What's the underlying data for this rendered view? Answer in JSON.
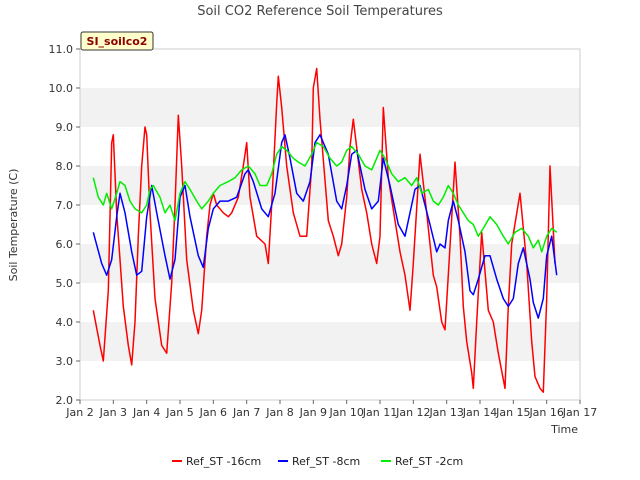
{
  "chart_data": {
    "type": "line",
    "title": "Soil CO2 Reference Soil Temperatures",
    "xlabel": "Time",
    "ylabel": "Soil Temperature (C)",
    "site_badge": "SI_soilco2",
    "ylim": [
      2.0,
      11.0
    ],
    "y_ticks": [
      "2.0",
      "3.0",
      "4.0",
      "5.0",
      "6.0",
      "7.0",
      "8.0",
      "9.0",
      "10.0",
      "11.0"
    ],
    "xlim": [
      2,
      17
    ],
    "x_ticks": [
      "Jan 2",
      "Jan 3",
      "Jan 4",
      "Jan 5",
      "Jan 6",
      "Jan 7",
      "Jan 8",
      "Jan 9",
      "Jan 10",
      "Jan 11",
      "Jan 12",
      "Jan 13",
      "Jan 14",
      "Jan 15",
      "Jan 16",
      "Jan 17"
    ],
    "grid": "horizontal alternating bands",
    "legend_position": "bottom",
    "series": [
      {
        "name": "Ref_ST -16cm",
        "color": "#ff0000",
        "x": [
          2.4,
          2.6,
          2.7,
          2.85,
          2.95,
          3.0,
          3.1,
          3.3,
          3.45,
          3.55,
          3.65,
          3.75,
          3.85,
          3.95,
          4.0,
          4.1,
          4.25,
          4.45,
          4.6,
          4.75,
          4.85,
          4.95,
          5.05,
          5.2,
          5.4,
          5.55,
          5.65,
          5.8,
          5.9,
          6.0,
          6.1,
          6.3,
          6.45,
          6.55,
          6.75,
          6.9,
          7.0,
          7.1,
          7.3,
          7.55,
          7.65,
          7.75,
          7.9,
          7.95,
          8.05,
          8.2,
          8.4,
          8.6,
          8.8,
          8.95,
          9.0,
          9.1,
          9.2,
          9.45,
          9.6,
          9.75,
          9.85,
          10.0,
          10.1,
          10.2,
          10.45,
          10.6,
          10.75,
          10.9,
          11.0,
          11.1,
          11.25,
          11.45,
          11.6,
          11.75,
          11.9,
          12.0,
          12.2,
          12.4,
          12.6,
          12.7,
          12.85,
          12.95,
          13.05,
          13.25,
          13.4,
          13.5,
          13.6,
          13.75,
          13.8,
          13.9,
          14.05,
          14.25,
          14.4,
          14.55,
          14.75,
          14.85,
          14.95,
          15.2,
          15.4,
          15.55,
          15.65,
          15.8,
          15.9,
          16.0,
          16.1,
          16.25
        ],
        "y": [
          4.3,
          3.4,
          3.0,
          4.8,
          8.6,
          8.8,
          6.8,
          4.4,
          3.4,
          2.9,
          4.0,
          6.2,
          8.0,
          9.0,
          8.8,
          6.8,
          4.6,
          3.4,
          3.2,
          5.0,
          7.0,
          9.3,
          8.0,
          5.6,
          4.3,
          3.7,
          4.3,
          6.2,
          7.0,
          7.3,
          7.0,
          6.8,
          6.7,
          6.8,
          7.2,
          8.0,
          8.6,
          7.2,
          6.2,
          6.0,
          5.5,
          7.0,
          9.6,
          10.3,
          9.5,
          8.0,
          6.8,
          6.2,
          6.2,
          8.0,
          10.0,
          10.5,
          9.2,
          6.6,
          6.2,
          5.7,
          6.0,
          7.2,
          8.5,
          9.2,
          7.4,
          6.8,
          6.0,
          5.5,
          6.2,
          9.5,
          7.7,
          6.6,
          5.8,
          5.2,
          4.3,
          5.5,
          8.3,
          6.8,
          5.2,
          4.9,
          4.0,
          3.8,
          5.2,
          8.1,
          6.2,
          4.4,
          3.5,
          2.7,
          2.3,
          4.0,
          6.3,
          4.3,
          4.0,
          3.2,
          2.3,
          4.4,
          6.0,
          7.3,
          5.5,
          3.5,
          2.6,
          2.3,
          2.2,
          4.6,
          8.0,
          5.5
        ]
      },
      {
        "name": "Ref_ST -8cm",
        "color": "#0000ff",
        "x": [
          2.4,
          2.65,
          2.8,
          2.95,
          3.1,
          3.2,
          3.35,
          3.55,
          3.7,
          3.85,
          4.0,
          4.15,
          4.3,
          4.55,
          4.7,
          4.85,
          5.0,
          5.15,
          5.3,
          5.55,
          5.7,
          5.85,
          6.0,
          6.2,
          6.45,
          6.7,
          6.95,
          7.05,
          7.2,
          7.45,
          7.65,
          7.85,
          8.05,
          8.15,
          8.3,
          8.5,
          8.7,
          8.9,
          9.05,
          9.2,
          9.45,
          9.7,
          9.85,
          10.0,
          10.15,
          10.3,
          10.55,
          10.75,
          10.95,
          11.1,
          11.3,
          11.55,
          11.75,
          11.9,
          12.05,
          12.2,
          12.35,
          12.5,
          12.7,
          12.8,
          12.95,
          13.05,
          13.2,
          13.35,
          13.55,
          13.7,
          13.8,
          13.95,
          14.15,
          14.3,
          14.5,
          14.7,
          14.85,
          15.0,
          15.15,
          15.3,
          15.5,
          15.6,
          15.75,
          15.9,
          16.0,
          16.15,
          16.3
        ],
        "y": [
          6.3,
          5.5,
          5.2,
          5.6,
          6.7,
          7.3,
          6.8,
          5.8,
          5.2,
          5.3,
          6.7,
          7.5,
          6.8,
          5.7,
          5.1,
          5.6,
          7.2,
          7.5,
          6.7,
          5.7,
          5.4,
          6.4,
          6.9,
          7.1,
          7.1,
          7.2,
          7.8,
          7.9,
          7.6,
          6.9,
          6.7,
          7.3,
          8.6,
          8.8,
          8.2,
          7.3,
          7.1,
          7.6,
          8.6,
          8.8,
          8.3,
          7.1,
          6.9,
          7.5,
          8.3,
          8.4,
          7.4,
          6.9,
          7.1,
          8.2,
          7.5,
          6.5,
          6.2,
          6.8,
          7.4,
          7.5,
          7.0,
          6.5,
          5.8,
          6.0,
          5.9,
          6.6,
          7.1,
          6.6,
          5.8,
          4.8,
          4.7,
          5.1,
          5.7,
          5.7,
          5.1,
          4.6,
          4.4,
          4.6,
          5.5,
          5.9,
          5.1,
          4.5,
          4.1,
          4.6,
          5.7,
          6.2,
          5.2
        ]
      },
      {
        "name": "Ref_ST -2cm",
        "color": "#00ee00",
        "x": [
          2.4,
          2.55,
          2.7,
          2.8,
          2.95,
          3.1,
          3.2,
          3.35,
          3.5,
          3.65,
          3.85,
          4.0,
          4.1,
          4.2,
          4.4,
          4.55,
          4.7,
          4.85,
          5.0,
          5.15,
          5.3,
          5.5,
          5.65,
          5.85,
          6.0,
          6.2,
          6.45,
          6.65,
          6.85,
          7.05,
          7.25,
          7.4,
          7.6,
          7.75,
          7.9,
          8.05,
          8.2,
          8.4,
          8.55,
          8.75,
          8.95,
          9.1,
          9.3,
          9.5,
          9.7,
          9.85,
          10.0,
          10.15,
          10.35,
          10.55,
          10.75,
          10.9,
          11.0,
          11.15,
          11.35,
          11.55,
          11.75,
          11.95,
          12.1,
          12.25,
          12.45,
          12.6,
          12.75,
          12.9,
          13.05,
          13.2,
          13.35,
          13.5,
          13.65,
          13.8,
          13.95,
          14.1,
          14.3,
          14.5,
          14.7,
          14.85,
          15.05,
          15.25,
          15.45,
          15.6,
          15.75,
          15.85,
          16.0,
          16.15,
          16.3
        ],
        "y": [
          7.7,
          7.2,
          7.0,
          7.3,
          6.9,
          7.3,
          7.6,
          7.5,
          7.1,
          6.9,
          6.8,
          7.0,
          7.4,
          7.5,
          7.2,
          6.8,
          7.0,
          6.6,
          7.3,
          7.6,
          7.4,
          7.1,
          6.9,
          7.1,
          7.3,
          7.5,
          7.6,
          7.7,
          7.9,
          8.0,
          7.8,
          7.5,
          7.5,
          7.8,
          8.3,
          8.5,
          8.4,
          8.2,
          8.1,
          8.0,
          8.3,
          8.6,
          8.5,
          8.2,
          8.0,
          8.1,
          8.4,
          8.5,
          8.3,
          8.0,
          7.9,
          8.2,
          8.4,
          8.2,
          7.8,
          7.6,
          7.7,
          7.5,
          7.7,
          7.3,
          7.4,
          7.1,
          7.0,
          7.2,
          7.5,
          7.3,
          7.0,
          6.8,
          6.6,
          6.5,
          6.2,
          6.4,
          6.7,
          6.5,
          6.2,
          6.0,
          6.3,
          6.4,
          6.2,
          5.9,
          6.1,
          5.8,
          6.2,
          6.4,
          6.3
        ]
      }
    ]
  }
}
